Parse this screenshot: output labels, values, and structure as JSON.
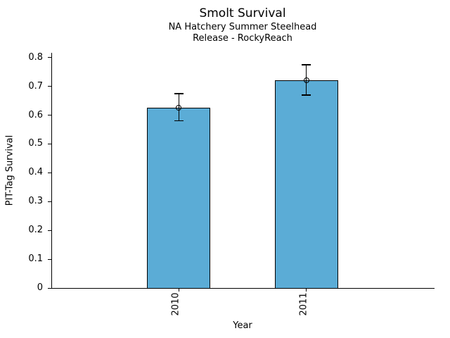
{
  "chart_data": {
    "type": "bar",
    "title": "Smolt Survival",
    "subtitle1": "NA Hatchery Summer Steelhead",
    "subtitle2": "Release - RockyReach",
    "xlabel": "Year",
    "ylabel": "PIT-Tag Survival",
    "categories": [
      "2010",
      "2011"
    ],
    "values": [
      0.625,
      0.72
    ],
    "error_low": [
      0.58,
      0.67
    ],
    "error_high": [
      0.675,
      0.775
    ],
    "ylim": [
      0,
      0.8
    ],
    "yticks": [
      "0",
      "0.1",
      "0.2",
      "0.3",
      "0.4",
      "0.5",
      "0.6",
      "0.7",
      "0.8"
    ],
    "x_tick_rotation": 90,
    "grid": false,
    "legend": "none",
    "marker": "open-circle",
    "bar_color": "#5BACD6",
    "bar_edge_color": "#000000",
    "text_color": "#000000",
    "background_color": "#FFFFFF"
  }
}
